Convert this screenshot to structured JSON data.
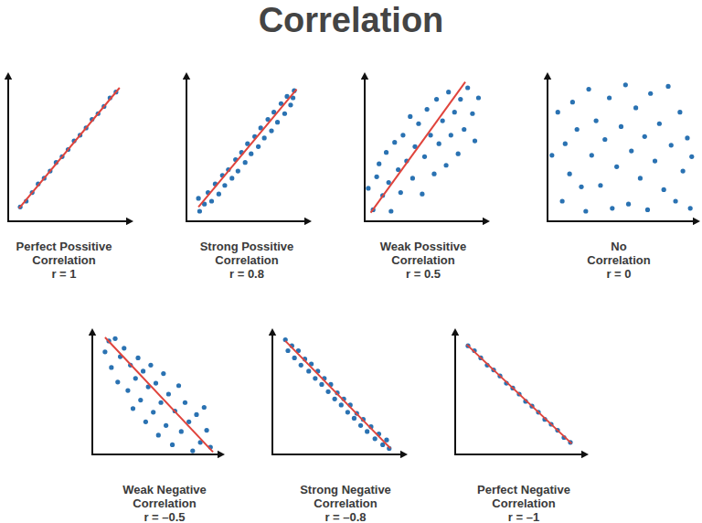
{
  "title": "Correlation",
  "chart_data": [
    {
      "type": "scatter",
      "title": [
        "Perfect Possitive",
        "Correlation"
      ],
      "subtitle": "r = 1",
      "xlim": [
        0,
        10
      ],
      "ylim": [
        0,
        10
      ],
      "tick_labels": false,
      "grid": false,
      "series": [
        {
          "type": "scatter",
          "color": "#2a72b2",
          "marker": "circle",
          "x": [
            1,
            1.5,
            2,
            2.5,
            3,
            3.5,
            4,
            4.5,
            5,
            5.5,
            6,
            6.5,
            7,
            7.5,
            8,
            8.5,
            9
          ],
          "values": [
            1,
            1.4,
            2,
            2.6,
            3,
            3.5,
            4.1,
            4.5,
            5,
            5.6,
            6,
            6.5,
            7.1,
            7.5,
            8,
            8.6,
            9
          ]
        },
        {
          "type": "line",
          "color": "#e0443c",
          "x": [
            0.9,
            9.3
          ],
          "values": [
            0.9,
            9.3
          ]
        }
      ]
    },
    {
      "type": "scatter",
      "title": [
        "Strong Possitive",
        "Correlation"
      ],
      "subtitle": "r = 0.8",
      "xlim": [
        0,
        10
      ],
      "ylim": [
        0,
        10
      ],
      "tick_labels": false,
      "grid": false,
      "series": [
        {
          "type": "scatter",
          "color": "#2a72b2",
          "marker": "circle",
          "x": [
            1,
            1.1,
            1.5,
            1.8,
            2.1,
            2.4,
            2.7,
            3,
            3.2,
            3.5,
            3.8,
            4.1,
            4.3,
            4.6,
            4.9,
            5.1,
            5.4,
            5.7,
            6,
            6.2,
            6.5,
            6.8,
            7.1,
            7.3,
            7.6,
            7.9,
            8.2,
            8.4,
            8.7,
            8.9,
            9
          ],
          "values": [
            1.6,
            0.7,
            1.2,
            2.0,
            1.4,
            2.6,
            1.9,
            3.2,
            2.5,
            3.6,
            3.0,
            4.3,
            3.5,
            4.8,
            4.1,
            5.4,
            4.7,
            5.9,
            5.2,
            6.5,
            5.8,
            7.1,
            6.3,
            7.6,
            6.9,
            8.2,
            7.5,
            8.7,
            8.1,
            8.6,
            9.1
          ]
        },
        {
          "type": "line",
          "color": "#e0443c",
          "x": [
            1,
            9.2
          ],
          "values": [
            1,
            9.2
          ]
        }
      ]
    },
    {
      "type": "scatter",
      "title": [
        "Weak Possitive",
        "Correlation"
      ],
      "subtitle": "r = 0.5",
      "xlim": [
        0,
        10
      ],
      "ylim": [
        0,
        10
      ],
      "tick_labels": false,
      "grid": false,
      "series": [
        {
          "type": "scatter",
          "color": "#2a72b2",
          "marker": "circle",
          "x": [
            0.3,
            0.7,
            1,
            1.2,
            1.5,
            1.8,
            2,
            2.2,
            2.5,
            2.8,
            3,
            3.2,
            3.5,
            3.8,
            4,
            4.2,
            4.5,
            4.8,
            5,
            5.2,
            5.5,
            5.8,
            6,
            6.2,
            6.5,
            6.8,
            7,
            7.2,
            7.5,
            7.8,
            8,
            8.3,
            8.6,
            9,
            9.2,
            9.5
          ],
          "values": [
            2.3,
            0.8,
            3.1,
            4.0,
            1.8,
            4.8,
            2.7,
            0.7,
            5.5,
            3.6,
            2.0,
            6.0,
            4.2,
            7.3,
            3.0,
            5.2,
            6.8,
            1.9,
            4.5,
            7.8,
            6.0,
            3.3,
            8.5,
            5.4,
            7.0,
            3.9,
            9.0,
            6.0,
            7.6,
            4.7,
            8.5,
            6.4,
            9.3,
            7.5,
            5.6,
            8.6
          ]
        },
        {
          "type": "line",
          "color": "#e0443c",
          "x": [
            0.5,
            8.4
          ],
          "values": [
            0.6,
            9.7
          ]
        }
      ]
    },
    {
      "type": "scatter",
      "title": [
        "No",
        "Correlation"
      ],
      "subtitle": "r = 0",
      "xlim": [
        0,
        10
      ],
      "ylim": [
        0,
        10
      ],
      "tick_labels": false,
      "grid": false,
      "series": [
        {
          "type": "scatter",
          "color": "#2a72b2",
          "marker": "circle",
          "x": [
            0.3,
            0.7,
            1,
            1.2,
            1.5,
            1.7,
            2,
            2.3,
            2.6,
            2.8,
            3,
            3.3,
            3.6,
            3.9,
            4.2,
            4.4,
            4.7,
            5,
            5.3,
            5.5,
            5.7,
            6,
            6.3,
            6.6,
            6.8,
            7,
            7.3,
            7.6,
            7.9,
            8.2,
            8.4,
            8.7,
            9,
            9.2,
            9.5,
            9.7,
            9.8
          ],
          "values": [
            4.6,
            7.6,
            1.4,
            5.4,
            3.3,
            8.3,
            6.4,
            2.4,
            0.7,
            9.2,
            4.6,
            7.0,
            2.5,
            5.7,
            8.6,
            0.9,
            3.8,
            6.6,
            9.5,
            1.2,
            4.9,
            7.9,
            3.0,
            5.9,
            0.8,
            8.9,
            4.2,
            6.8,
            2.2,
            9.4,
            5.3,
            1.4,
            7.6,
            3.5,
            5.8,
            0.9,
            4.5
          ]
        }
      ]
    },
    {
      "type": "scatter",
      "title": [
        "Weak Negative",
        "Correlation"
      ],
      "subtitle": "r = –0.5",
      "xlim": [
        0,
        10
      ],
      "ylim": [
        0,
        10
      ],
      "tick_labels": false,
      "grid": false,
      "series": [
        {
          "type": "scatter",
          "color": "#2a72b2",
          "marker": "circle",
          "x": [
            1,
            1.3,
            1.5,
            1.8,
            2,
            2.2,
            2.5,
            2.8,
            3,
            3.2,
            3.4,
            3.6,
            3.8,
            4,
            4.2,
            4.4,
            4.6,
            4.8,
            5,
            5.2,
            5.4,
            5.6,
            5.8,
            6,
            6.3,
            6.5,
            6.8,
            7,
            7.3,
            7.6,
            7.9,
            8.2,
            8.5,
            8.8,
            9,
            9.3
          ],
          "values": [
            8.5,
            9.4,
            7.2,
            9.6,
            6.0,
            8.1,
            8.8,
            5.3,
            7.4,
            3.8,
            6.3,
            8.0,
            4.5,
            6.9,
            2.7,
            5.6,
            7.4,
            3.5,
            5.9,
            1.6,
            4.3,
            6.7,
            2.4,
            5.0,
            0.8,
            3.6,
            5.7,
            1.9,
            4.3,
            2.7,
            0.3,
            3.3,
            1.0,
            3.9,
            2.0,
            0.6
          ]
        },
        {
          "type": "line",
          "color": "#e0443c",
          "x": [
            1,
            9.5
          ],
          "values": [
            9.7,
            0.2
          ]
        }
      ]
    },
    {
      "type": "scatter",
      "title": [
        "Strong Negative",
        "Correlation"
      ],
      "subtitle": "r = –0.8",
      "xlim": [
        0,
        10
      ],
      "ylim": [
        0,
        10
      ],
      "tick_labels": false,
      "grid": false,
      "series": [
        {
          "type": "scatter",
          "color": "#2a72b2",
          "marker": "circle",
          "x": [
            1,
            1.2,
            1.5,
            1.7,
            2,
            2.2,
            2.5,
            2.8,
            3,
            3.3,
            3.5,
            3.8,
            4,
            4.3,
            4.5,
            4.8,
            5,
            5.3,
            5.5,
            5.8,
            6,
            6.3,
            6.5,
            6.8,
            7,
            7.3,
            7.6,
            7.9,
            8.2,
            8.5,
            8.8,
            9
          ],
          "values": [
            9.5,
            8.6,
            9.0,
            8.0,
            8.6,
            7.4,
            7.9,
            6.9,
            7.5,
            6.3,
            6.9,
            5.8,
            6.3,
            5.2,
            5.8,
            4.6,
            5.1,
            4.1,
            4.6,
            3.5,
            4.1,
            3.0,
            3.4,
            2.4,
            2.9,
            1.9,
            2.3,
            1.3,
            1.7,
            0.8,
            1.2,
            0.5
          ]
        },
        {
          "type": "line",
          "color": "#e0443c",
          "x": [
            1,
            9.1
          ],
          "values": [
            9.4,
            0.5
          ]
        }
      ]
    },
    {
      "type": "scatter",
      "title": [
        "Perfect Negative",
        "Correlation"
      ],
      "subtitle": "r = –1",
      "xlim": [
        0,
        10
      ],
      "ylim": [
        0,
        10
      ],
      "tick_labels": false,
      "grid": false,
      "series": [
        {
          "type": "scatter",
          "color": "#2a72b2",
          "marker": "circle",
          "x": [
            1,
            1.5,
            2,
            2.5,
            3,
            3.5,
            4,
            4.5,
            5,
            5.5,
            6,
            6.5,
            7,
            7.5,
            8,
            8.5,
            9
          ],
          "values": [
            9,
            8.6,
            8,
            7.4,
            7,
            6.5,
            5.9,
            5.5,
            5,
            4.4,
            4,
            3.5,
            2.9,
            2.5,
            2,
            1.4,
            1
          ]
        },
        {
          "type": "line",
          "color": "#e0443c",
          "x": [
            0.9,
            9.1
          ],
          "values": [
            9.1,
            0.9
          ]
        }
      ]
    }
  ]
}
